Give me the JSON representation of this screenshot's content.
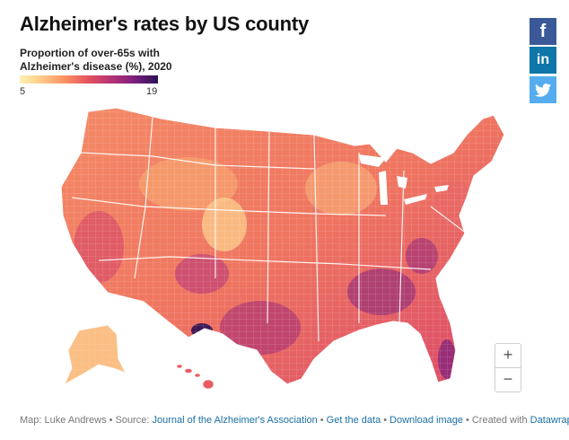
{
  "title": "Alzheimer's rates by US county",
  "legend": {
    "title": "Proportion of over-65s with Alzheimer's disease (%), 2020",
    "min": "5",
    "max": "19",
    "colors": [
      "#fdf2b0",
      "#fec786",
      "#fb8f62",
      "#e3515f",
      "#b33275",
      "#7a1f7e",
      "#2a0f53"
    ]
  },
  "share": {
    "facebook_label": "f",
    "linkedin_label": "in"
  },
  "zoom": {
    "in_label": "+",
    "out_label": "−"
  },
  "footer": {
    "map_credit": "Map: Luke Andrews",
    "source_prefix": "Source:",
    "source_link": "Journal of the Alzheimer's Association",
    "get_data": "Get the data",
    "download_image": "Download image",
    "created_with": "Created with",
    "tool_link": "Datawrapper"
  }
}
